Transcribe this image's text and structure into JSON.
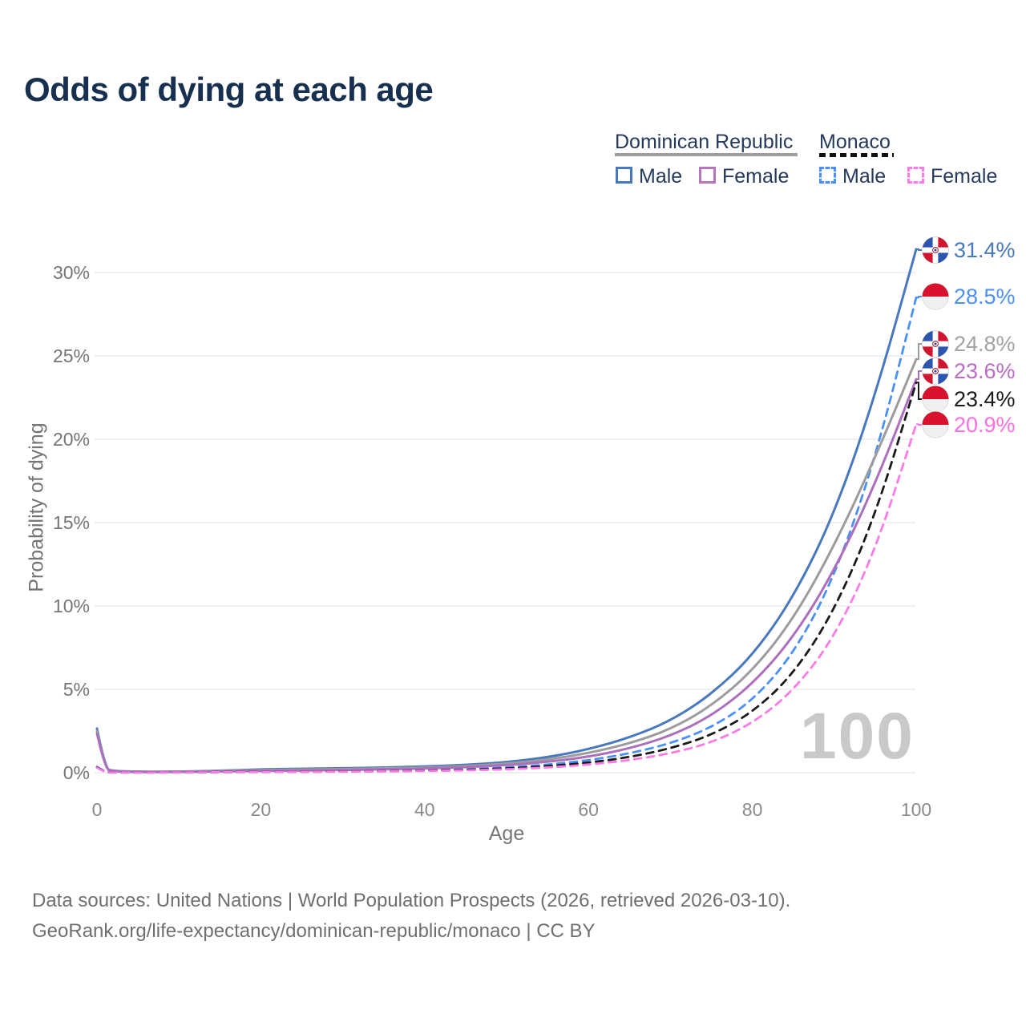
{
  "title": "Odds of dying at each age",
  "legend": {
    "groups": [
      {
        "label": "Dominican Republic",
        "underline_style": "solid",
        "underline_color": "#9e9e9e",
        "items": [
          {
            "label": "Male",
            "swatch_color": "#4878be",
            "swatch_style": "solid"
          },
          {
            "label": "Female",
            "swatch_color": "#b577bb",
            "swatch_style": "solid"
          }
        ]
      },
      {
        "label": "Monaco",
        "underline_style": "dashed",
        "underline_color": "#111111",
        "items": [
          {
            "label": "Male",
            "swatch_color": "#4a90f7",
            "swatch_style": "dashed"
          },
          {
            "label": "Female",
            "swatch_color": "#fb7ce8",
            "swatch_style": "dashed"
          }
        ]
      }
    ]
  },
  "chart_data": {
    "type": "line",
    "title": "Odds of dying at each age",
    "xlabel": "Age",
    "ylabel": "Probability of dying",
    "xlim": [
      0,
      100
    ],
    "ylim": [
      0,
      32
    ],
    "grid": "horizontal",
    "legend_position": "top-right",
    "watermark": "100",
    "xticks": {
      "values": [
        0,
        20,
        40,
        60,
        80,
        100
      ],
      "labels": [
        "0",
        "20",
        "40",
        "60",
        "80",
        "100"
      ]
    },
    "yticks": {
      "values": [
        0,
        5,
        10,
        15,
        20,
        25,
        30
      ],
      "labels": [
        "0%",
        "5%",
        "10%",
        "15%",
        "20%",
        "25%",
        "30%"
      ]
    },
    "x": [
      0,
      1,
      2,
      5,
      10,
      15,
      20,
      25,
      30,
      35,
      40,
      45,
      50,
      55,
      60,
      65,
      70,
      75,
      80,
      85,
      90,
      95,
      100
    ],
    "series": [
      {
        "id": "dr-male",
        "name": "Dominican Republic Male",
        "country": "Dominican Republic",
        "sex": "Male",
        "color": "#4878be",
        "dashed": false,
        "flag": "dominican-republic",
        "end_label": "31.4%",
        "end_value": 31.4,
        "label_color": "#4878be",
        "values": [
          2.65,
          0.25,
          0.1,
          0.06,
          0.06,
          0.12,
          0.2,
          0.24,
          0.27,
          0.31,
          0.37,
          0.47,
          0.63,
          0.92,
          1.4,
          2.1,
          3.1,
          4.7,
          7.0,
          10.5,
          15.5,
          22.6,
          31.4
        ]
      },
      {
        "id": "mc-male",
        "name": "Monaco Male",
        "country": "Monaco",
        "sex": "Male",
        "color": "#4a90f7",
        "dashed": true,
        "flag": "monaco",
        "end_label": "28.5%",
        "end_value": 28.5,
        "label_color": "#4a90f7",
        "values": [
          0.35,
          0.03,
          0.02,
          0.015,
          0.02,
          0.04,
          0.06,
          0.07,
          0.09,
          0.11,
          0.15,
          0.21,
          0.31,
          0.48,
          0.74,
          1.15,
          1.75,
          2.7,
          4.3,
          7.1,
          11.7,
          18.8,
          28.5
        ]
      },
      {
        "id": "dr-both",
        "name": "Dominican Republic Both sexes",
        "country": "Dominican Republic",
        "sex": "Both",
        "color": "#9c9c9c",
        "dashed": false,
        "flag": "dominican-republic",
        "end_label": "24.8%",
        "end_value": 24.8,
        "label_color": "#a3a3a3",
        "values": [
          2.5,
          0.22,
          0.09,
          0.05,
          0.05,
          0.1,
          0.16,
          0.19,
          0.22,
          0.26,
          0.31,
          0.4,
          0.54,
          0.78,
          1.17,
          1.75,
          2.6,
          4.0,
          6.1,
          9.2,
          13.6,
          18.9,
          24.8
        ]
      },
      {
        "id": "dr-female",
        "name": "Dominican Republic Female",
        "country": "Dominican Republic",
        "sex": "Female",
        "color": "#ab6fbc",
        "dashed": false,
        "flag": "dominican-republic",
        "end_label": "23.6%",
        "end_value": 23.6,
        "label_color": "#bb6bc4",
        "values": [
          2.35,
          0.2,
          0.08,
          0.045,
          0.045,
          0.08,
          0.11,
          0.13,
          0.16,
          0.2,
          0.25,
          0.33,
          0.45,
          0.65,
          0.95,
          1.45,
          2.2,
          3.4,
          5.3,
          8.1,
          12.1,
          17.3,
          23.6
        ]
      },
      {
        "id": "mc-both",
        "name": "Monaco Both sexes",
        "country": "Monaco",
        "sex": "Both",
        "color": "#1a1a1a",
        "dashed": true,
        "flag": "monaco",
        "end_label": "23.4%",
        "end_value": 23.4,
        "label_color": "#1a1a1a",
        "values": [
          0.32,
          0.03,
          0.02,
          0.013,
          0.018,
          0.035,
          0.05,
          0.06,
          0.075,
          0.09,
          0.12,
          0.17,
          0.25,
          0.39,
          0.6,
          0.93,
          1.45,
          2.25,
          3.6,
          5.9,
          9.7,
          15.4,
          23.4
        ]
      },
      {
        "id": "mc-female",
        "name": "Monaco Female",
        "country": "Monaco",
        "sex": "Female",
        "color": "#fa7ae6",
        "dashed": true,
        "flag": "monaco",
        "end_label": "20.9%",
        "end_value": 20.9,
        "label_color": "#fb6fe3",
        "values": [
          0.3,
          0.025,
          0.015,
          0.012,
          0.015,
          0.03,
          0.04,
          0.05,
          0.06,
          0.075,
          0.1,
          0.14,
          0.2,
          0.31,
          0.48,
          0.75,
          1.15,
          1.8,
          2.95,
          4.9,
          8.1,
          13.3,
          20.9
        ]
      }
    ]
  },
  "footer": {
    "line1": "Data sources: United Nations | World Population Prospects (2026, retrieved 2026-03-10).",
    "line2": "GeoRank.org/life-expectancy/dominican-republic/monaco | CC BY"
  }
}
